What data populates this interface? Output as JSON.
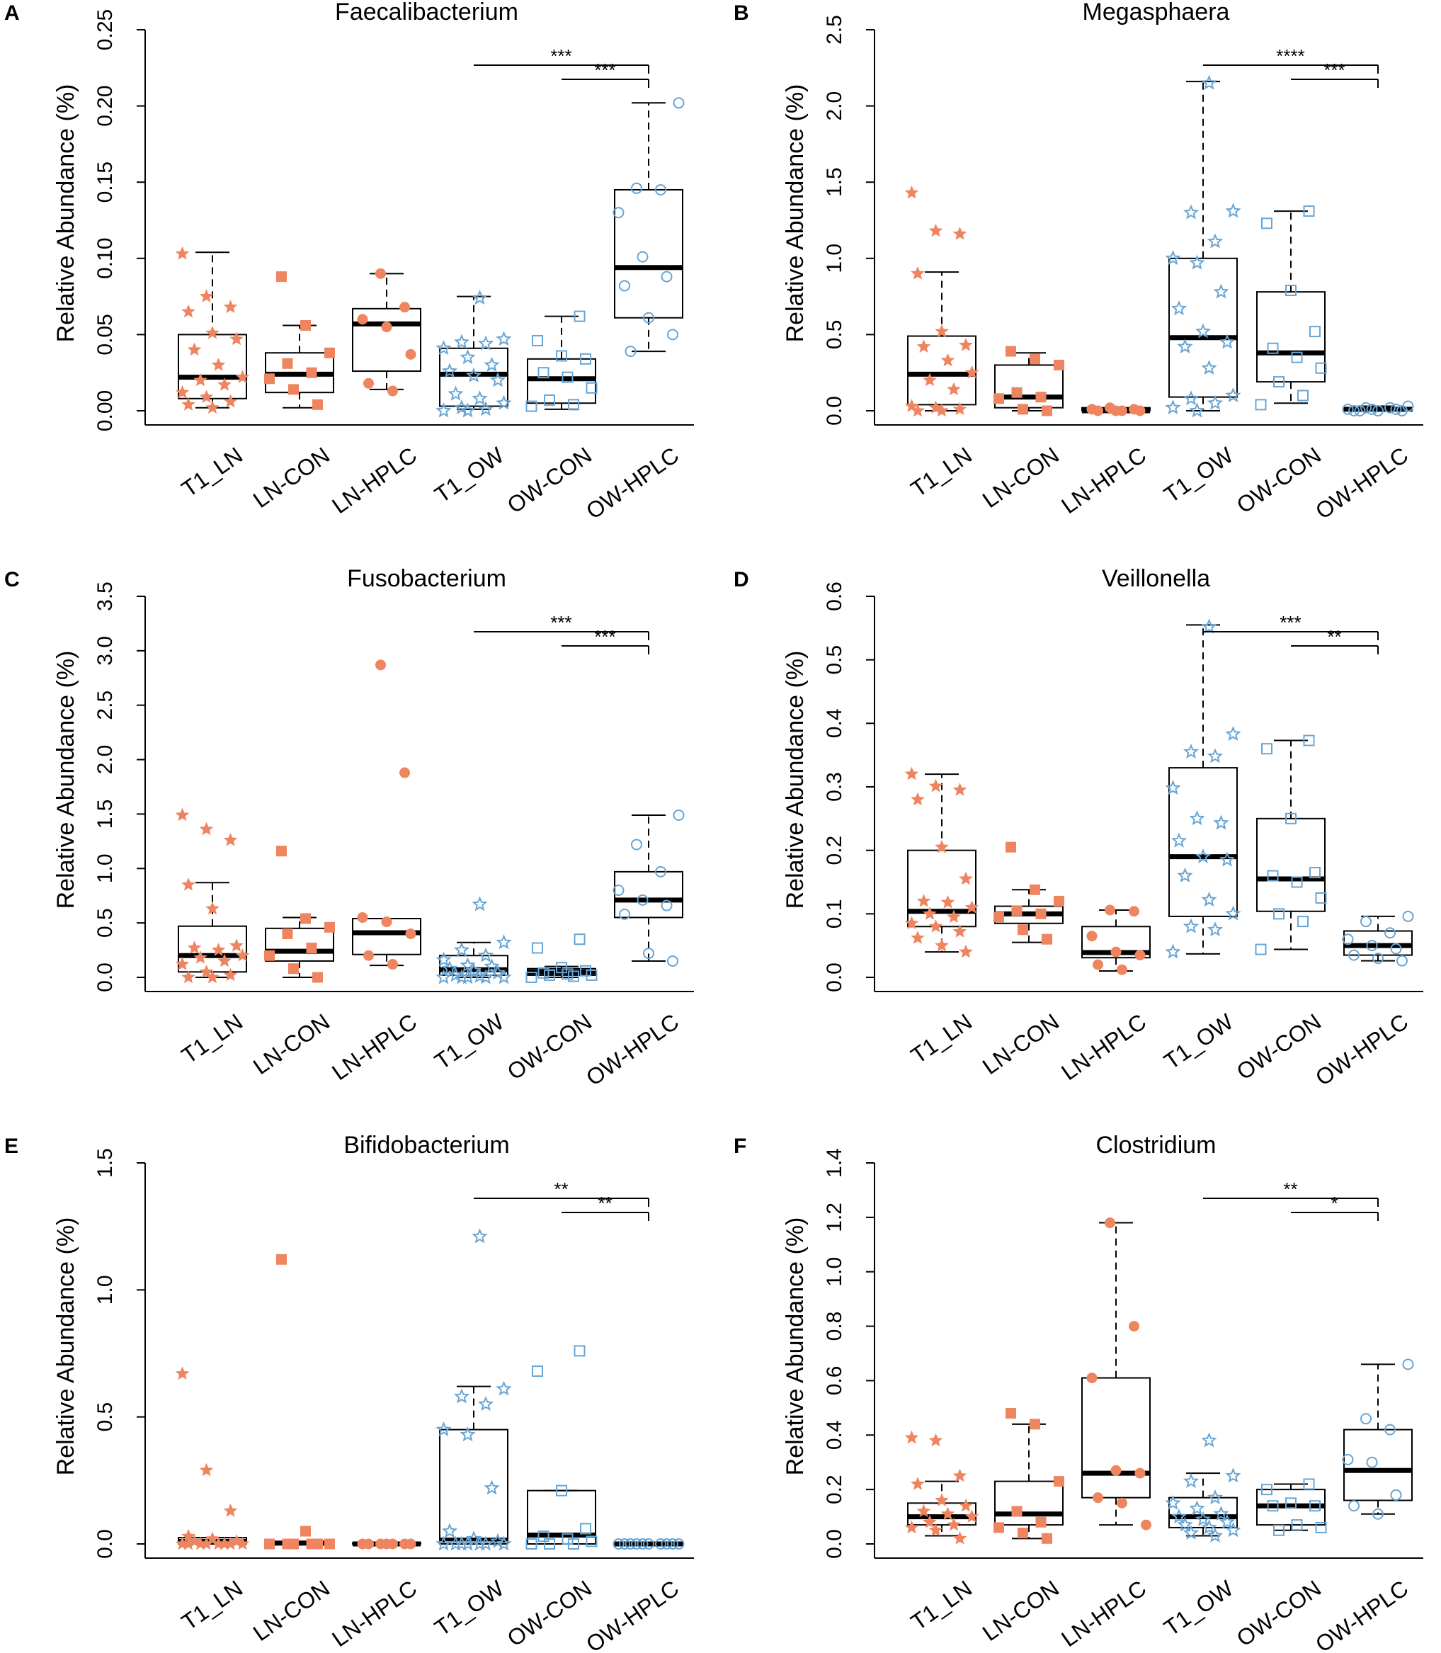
{
  "figure": {
    "colors": {
      "ln": "#EE8560",
      "ow": "#68A5D4",
      "box": "#000000"
    },
    "groups": [
      "T1_LN",
      "LN-CON",
      "LN-HPLC",
      "T1_OW",
      "OW-CON",
      "OW-HPLC"
    ],
    "ylabel": "Relative Abundance (%)"
  },
  "chart_data": [
    {
      "panel": "A",
      "title": "Faecalibacterium",
      "type": "box",
      "ylim": [
        0,
        0.25
      ],
      "ticks": [
        "0.00",
        "0.05",
        "0.10",
        "0.15",
        "0.20",
        "0.25"
      ],
      "brackets": [
        {
          "from": 3,
          "to": 5,
          "label": "***"
        },
        {
          "from": 4,
          "to": 5,
          "label": "***"
        }
      ],
      "boxes": [
        {
          "q1": 0.008,
          "med": 0.022,
          "q3": 0.05,
          "lo": 0.002,
          "hi": 0.104
        },
        {
          "q1": 0.012,
          "med": 0.024,
          "q3": 0.038,
          "lo": 0.002,
          "hi": 0.056
        },
        {
          "q1": 0.026,
          "med": 0.057,
          "q3": 0.067,
          "lo": 0.014,
          "hi": 0.09
        },
        {
          "q1": 0.003,
          "med": 0.024,
          "q3": 0.041,
          "lo": 0.001,
          "hi": 0.075
        },
        {
          "q1": 0.005,
          "med": 0.021,
          "q3": 0.034,
          "lo": 0.001,
          "hi": 0.062
        },
        {
          "q1": 0.061,
          "med": 0.094,
          "q3": 0.145,
          "lo": 0.039,
          "hi": 0.202
        }
      ],
      "points": [
        [
          0.103,
          0.075,
          0.068,
          0.065,
          0.051,
          0.047,
          0.04,
          0.03,
          0.022,
          0.02,
          0.017,
          0.012,
          0.009,
          0.006,
          0.004,
          0.002
        ],
        [
          0.088,
          0.056,
          0.038,
          0.031,
          0.025,
          0.021,
          0.014,
          0.004
        ],
        [
          0.09,
          0.068,
          0.06,
          0.055,
          0.037,
          0.018,
          0.013
        ],
        [
          0.074,
          0.047,
          0.045,
          0.044,
          0.041,
          0.035,
          0.03,
          0.026,
          0.023,
          0.02,
          0.011,
          0.008,
          0.005,
          0.002,
          0.001,
          0.0,
          0.0
        ],
        [
          0.062,
          0.046,
          0.036,
          0.034,
          0.025,
          0.022,
          0.015,
          0.007,
          0.004,
          0.003
        ],
        [
          0.202,
          0.146,
          0.145,
          0.13,
          0.101,
          0.088,
          0.082,
          0.061,
          0.05,
          0.039
        ]
      ]
    },
    {
      "panel": "B",
      "title": "Megasphaera",
      "type": "box",
      "ylim": [
        0,
        2.5
      ],
      "ticks": [
        "0.0",
        "0.5",
        "1.0",
        "1.5",
        "2.0",
        "2.5"
      ],
      "brackets": [
        {
          "from": 3,
          "to": 5,
          "label": "****"
        },
        {
          "from": 4,
          "to": 5,
          "label": "***"
        }
      ],
      "boxes": [
        {
          "q1": 0.04,
          "med": 0.24,
          "q3": 0.49,
          "lo": 0.0,
          "hi": 0.91
        },
        {
          "q1": 0.02,
          "med": 0.09,
          "q3": 0.3,
          "lo": 0.0,
          "hi": 0.38
        },
        {
          "q1": 0.0,
          "med": 0.0,
          "q3": 0.02,
          "lo": 0.0,
          "hi": 0.02
        },
        {
          "q1": 0.09,
          "med": 0.48,
          "q3": 1.0,
          "lo": 0.0,
          "hi": 2.16
        },
        {
          "q1": 0.19,
          "med": 0.38,
          "q3": 0.78,
          "lo": 0.05,
          "hi": 1.31
        },
        {
          "q1": 0.0,
          "med": 0.01,
          "q3": 0.02,
          "lo": 0.0,
          "hi": 0.03
        }
      ],
      "points": [
        [
          1.43,
          1.18,
          1.16,
          0.9,
          0.52,
          0.43,
          0.42,
          0.33,
          0.25,
          0.2,
          0.14,
          0.03,
          0.02,
          0.01,
          0.0,
          0.0
        ],
        [
          0.39,
          0.34,
          0.3,
          0.12,
          0.09,
          0.08,
          0.01,
          0.0
        ],
        [
          0.02,
          0.01,
          0.01,
          0.0,
          0.0,
          0.0,
          0.0
        ],
        [
          2.15,
          1.31,
          1.3,
          1.11,
          1.0,
          0.97,
          0.78,
          0.67,
          0.52,
          0.45,
          0.42,
          0.28,
          0.1,
          0.08,
          0.05,
          0.02,
          0.0
        ],
        [
          1.31,
          1.23,
          0.79,
          0.52,
          0.41,
          0.35,
          0.28,
          0.19,
          0.1,
          0.04
        ],
        [
          0.03,
          0.02,
          0.02,
          0.01,
          0.01,
          0.01,
          0.0,
          0.0,
          0.0,
          0.0
        ]
      ]
    },
    {
      "panel": "C",
      "title": "Fusobacterium",
      "type": "box",
      "ylim": [
        0,
        3.5
      ],
      "ticks": [
        "0.0",
        "0.5",
        "1.0",
        "1.5",
        "2.0",
        "2.5",
        "3.0",
        "3.5"
      ],
      "brackets": [
        {
          "from": 3,
          "to": 5,
          "label": "***"
        },
        {
          "from": 4,
          "to": 5,
          "label": "***"
        }
      ],
      "boxes": [
        {
          "q1": 0.05,
          "med": 0.2,
          "q3": 0.47,
          "lo": 0.0,
          "hi": 0.87
        },
        {
          "q1": 0.15,
          "med": 0.24,
          "q3": 0.45,
          "lo": 0.0,
          "hi": 0.55
        },
        {
          "q1": 0.21,
          "med": 0.41,
          "q3": 0.54,
          "lo": 0.11,
          "hi": 0.54
        },
        {
          "q1": 0.02,
          "med": 0.07,
          "q3": 0.2,
          "lo": 0.0,
          "hi": 0.32
        },
        {
          "q1": 0.02,
          "med": 0.05,
          "q3": 0.08,
          "lo": 0.0,
          "hi": 0.1
        },
        {
          "q1": 0.55,
          "med": 0.71,
          "q3": 0.97,
          "lo": 0.15,
          "hi": 1.49
        }
      ],
      "points": [
        [
          1.49,
          1.36,
          1.26,
          0.85,
          0.63,
          0.29,
          0.27,
          0.25,
          0.2,
          0.18,
          0.15,
          0.12,
          0.05,
          0.02,
          0.0,
          0.0
        ],
        [
          1.16,
          0.54,
          0.46,
          0.4,
          0.27,
          0.2,
          0.08,
          0.0
        ],
        [
          2.87,
          1.88,
          0.55,
          0.51,
          0.4,
          0.2,
          0.12
        ],
        [
          0.67,
          0.32,
          0.25,
          0.2,
          0.16,
          0.11,
          0.1,
          0.08,
          0.06,
          0.04,
          0.02,
          0.01,
          0.0,
          0.0,
          0.0,
          0.0,
          0.0
        ],
        [
          0.35,
          0.27,
          0.09,
          0.06,
          0.04,
          0.03,
          0.02,
          0.02,
          0.01,
          0.0
        ],
        [
          1.49,
          1.22,
          0.97,
          0.8,
          0.71,
          0.66,
          0.58,
          0.22,
          0.15
        ]
      ]
    },
    {
      "panel": "D",
      "title": "Veillonella",
      "type": "box",
      "ylim": [
        0,
        0.6
      ],
      "ticks": [
        "0.0",
        "0.1",
        "0.2",
        "0.3",
        "0.4",
        "0.5",
        "0.6"
      ],
      "brackets": [
        {
          "from": 3,
          "to": 5,
          "label": "***"
        },
        {
          "from": 4,
          "to": 5,
          "label": "**"
        }
      ],
      "boxes": [
        {
          "q1": 0.08,
          "med": 0.104,
          "q3": 0.2,
          "lo": 0.04,
          "hi": 0.32
        },
        {
          "q1": 0.085,
          "med": 0.1,
          "q3": 0.112,
          "lo": 0.055,
          "hi": 0.138
        },
        {
          "q1": 0.031,
          "med": 0.039,
          "q3": 0.08,
          "lo": 0.01,
          "hi": 0.106
        },
        {
          "q1": 0.096,
          "med": 0.19,
          "q3": 0.33,
          "lo": 0.037,
          "hi": 0.555
        },
        {
          "q1": 0.104,
          "med": 0.155,
          "q3": 0.25,
          "lo": 0.044,
          "hi": 0.373
        },
        {
          "q1": 0.035,
          "med": 0.05,
          "q3": 0.073,
          "lo": 0.026,
          "hi": 0.096
        }
      ],
      "points": [
        [
          0.32,
          0.301,
          0.295,
          0.28,
          0.205,
          0.155,
          0.12,
          0.118,
          0.11,
          0.1,
          0.095,
          0.085,
          0.08,
          0.072,
          0.062,
          0.05,
          0.04
        ],
        [
          0.205,
          0.138,
          0.12,
          0.105,
          0.1,
          0.095,
          0.075,
          0.06
        ],
        [
          0.106,
          0.104,
          0.065,
          0.04,
          0.035,
          0.02,
          0.012
        ],
        [
          0.552,
          0.383,
          0.355,
          0.348,
          0.298,
          0.25,
          0.243,
          0.215,
          0.19,
          0.185,
          0.16,
          0.122,
          0.1,
          0.08,
          0.075,
          0.04
        ],
        [
          0.373,
          0.36,
          0.25,
          0.165,
          0.16,
          0.15,
          0.125,
          0.1,
          0.088,
          0.044
        ],
        [
          0.096,
          0.088,
          0.07,
          0.06,
          0.05,
          0.045,
          0.035,
          0.03,
          0.026
        ]
      ]
    },
    {
      "panel": "E",
      "title": "Bifidobacterium",
      "type": "box",
      "ylim": [
        0,
        1.5
      ],
      "ticks": [
        "0.0",
        "0.5",
        "1.0",
        "1.5"
      ],
      "brackets": [
        {
          "from": 3,
          "to": 5,
          "label": "**"
        },
        {
          "from": 4,
          "to": 5,
          "label": "**"
        }
      ],
      "boxes": [
        {
          "q1": 0.0,
          "med": 0.01,
          "q3": 0.025,
          "lo": 0.0,
          "hi": 0.025
        },
        {
          "q1": 0.0,
          "med": 0.003,
          "q3": 0.01,
          "lo": 0.0,
          "hi": 0.01
        },
        {
          "q1": 0.0,
          "med": 0.0,
          "q3": 0.004,
          "lo": 0.0,
          "hi": 0.004
        },
        {
          "q1": 0.0,
          "med": 0.015,
          "q3": 0.45,
          "lo": 0.0,
          "hi": 0.62
        },
        {
          "q1": 0.0,
          "med": 0.035,
          "q3": 0.21,
          "lo": 0.0,
          "hi": 0.21
        },
        {
          "q1": 0.0,
          "med": 0.0,
          "q3": 0.002,
          "lo": 0.0,
          "hi": 0.002
        }
      ],
      "points": [
        [
          0.67,
          0.29,
          0.13,
          0.03,
          0.02,
          0.01,
          0.01,
          0.0,
          0.0,
          0.0,
          0.0,
          0.0,
          0.0,
          0.0,
          0.0
        ],
        [
          1.12,
          0.05,
          0.0,
          0.0,
          0.0,
          0.0,
          0.0,
          0.0
        ],
        [
          0.0,
          0.0,
          0.0,
          0.0,
          0.0,
          0.0,
          0.0
        ],
        [
          1.21,
          0.61,
          0.58,
          0.55,
          0.45,
          0.43,
          0.22,
          0.05,
          0.02,
          0.01,
          0.0,
          0.0,
          0.0,
          0.0,
          0.0,
          0.0,
          0.0
        ],
        [
          0.76,
          0.68,
          0.21,
          0.06,
          0.03,
          0.02,
          0.01,
          0.0,
          0.0,
          0.0
        ],
        [
          0.0,
          0.0,
          0.0,
          0.0,
          0.0,
          0.0,
          0.0,
          0.0,
          0.0,
          0.0
        ]
      ]
    },
    {
      "panel": "F",
      "title": "Clostridium",
      "type": "box",
      "ylim": [
        0,
        1.4
      ],
      "ticks": [
        "0.0",
        "0.2",
        "0.4",
        "0.6",
        "0.8",
        "1.0",
        "1.2",
        "1.4"
      ],
      "brackets": [
        {
          "from": 3,
          "to": 5,
          "label": "**"
        },
        {
          "from": 4,
          "to": 5,
          "label": "*"
        }
      ],
      "boxes": [
        {
          "q1": 0.07,
          "med": 0.1,
          "q3": 0.15,
          "lo": 0.03,
          "hi": 0.23
        },
        {
          "q1": 0.07,
          "med": 0.11,
          "q3": 0.23,
          "lo": 0.02,
          "hi": 0.44
        },
        {
          "q1": 0.17,
          "med": 0.26,
          "q3": 0.61,
          "lo": 0.07,
          "hi": 1.18
        },
        {
          "q1": 0.06,
          "med": 0.1,
          "q3": 0.17,
          "lo": 0.03,
          "hi": 0.26
        },
        {
          "q1": 0.07,
          "med": 0.14,
          "q3": 0.2,
          "lo": 0.05,
          "hi": 0.22
        },
        {
          "q1": 0.16,
          "med": 0.27,
          "q3": 0.42,
          "lo": 0.11,
          "hi": 0.66
        }
      ],
      "points": [
        [
          0.39,
          0.38,
          0.25,
          0.22,
          0.16,
          0.14,
          0.12,
          0.11,
          0.1,
          0.08,
          0.07,
          0.06,
          0.05,
          0.02
        ],
        [
          0.48,
          0.44,
          0.23,
          0.12,
          0.08,
          0.06,
          0.04,
          0.02
        ],
        [
          1.18,
          0.8,
          0.61,
          0.27,
          0.26,
          0.17,
          0.15,
          0.07
        ],
        [
          0.38,
          0.25,
          0.23,
          0.17,
          0.15,
          0.13,
          0.11,
          0.1,
          0.09,
          0.08,
          0.07,
          0.06,
          0.05,
          0.04,
          0.03
        ],
        [
          0.22,
          0.2,
          0.15,
          0.14,
          0.14,
          0.07,
          0.06,
          0.05
        ],
        [
          0.66,
          0.46,
          0.42,
          0.31,
          0.3,
          0.18,
          0.14,
          0.11
        ]
      ]
    }
  ]
}
